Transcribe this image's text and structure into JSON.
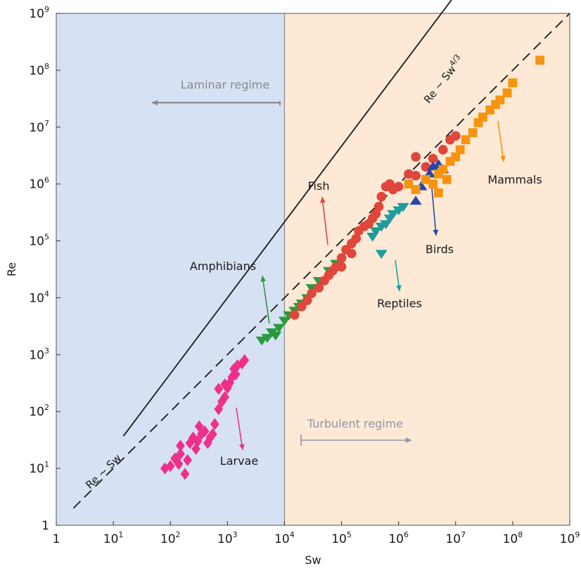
{
  "chart_data": {
    "type": "scatter",
    "scale": "log-log",
    "xlabel": "Sw",
    "ylabel": "Re",
    "xlim": [
      1,
      1000000000
    ],
    "ylim": [
      1,
      1000000000
    ],
    "x_ticks": [
      {
        "base": "1",
        "exp": ""
      },
      {
        "base": "10",
        "exp": "1"
      },
      {
        "base": "10",
        "exp": "2"
      },
      {
        "base": "10",
        "exp": "3"
      },
      {
        "base": "10",
        "exp": "4"
      },
      {
        "base": "10",
        "exp": "5"
      },
      {
        "base": "10",
        "exp": "6"
      },
      {
        "base": "10",
        "exp": "7"
      },
      {
        "base": "10",
        "exp": "8"
      },
      {
        "base": "10",
        "exp": "9"
      }
    ],
    "y_ticks": [
      {
        "base": "1",
        "exp": ""
      },
      {
        "base": "10",
        "exp": "1"
      },
      {
        "base": "10",
        "exp": "2"
      },
      {
        "base": "10",
        "exp": "3"
      },
      {
        "base": "10",
        "exp": "4"
      },
      {
        "base": "10",
        "exp": "5"
      },
      {
        "base": "10",
        "exp": "6"
      },
      {
        "base": "10",
        "exp": "7"
      },
      {
        "base": "10",
        "exp": "8"
      },
      {
        "base": "10",
        "exp": "9"
      }
    ],
    "regions": [
      {
        "label": "Laminar regime",
        "x_range": [
          1,
          10000
        ],
        "color": "#d6e1f3",
        "label_color": "#8a8a8a",
        "arrow_direction": "left"
      },
      {
        "label": "Turbulent regime",
        "x_range": [
          10000,
          1000000000
        ],
        "color": "#fde9d6",
        "label_color": "#8f96a6",
        "arrow_direction": "right"
      }
    ],
    "boundary_x": 10000,
    "laws": [
      {
        "label_main": "Re ~ Sw",
        "label_exp": "",
        "exponent": 1,
        "x_range": [
          2,
          1000000000
        ],
        "style": "dashed"
      },
      {
        "label_main": "Re ~ Sw",
        "label_exp": "4/3",
        "exponent": 1.3333,
        "x_range": [
          15,
          200000000
        ],
        "style": "solid"
      }
    ],
    "series": [
      {
        "name": "Larvae",
        "color": "#ee2f8b",
        "marker": "diamond",
        "arrow": "down",
        "points": [
          [
            80,
            10
          ],
          [
            100,
            11
          ],
          [
            120,
            15
          ],
          [
            150,
            18
          ],
          [
            140,
            12
          ],
          [
            180,
            8
          ],
          [
            200,
            14
          ],
          [
            150,
            25
          ],
          [
            220,
            28
          ],
          [
            250,
            35
          ],
          [
            300,
            30
          ],
          [
            280,
            22
          ],
          [
            350,
            40
          ],
          [
            400,
            45
          ],
          [
            320,
            55
          ],
          [
            450,
            28
          ],
          [
            500,
            35
          ],
          [
            550,
            40
          ],
          [
            600,
            60
          ],
          [
            700,
            110
          ],
          [
            800,
            150
          ],
          [
            900,
            180
          ],
          [
            1000,
            260
          ],
          [
            1100,
            320
          ],
          [
            1200,
            400
          ],
          [
            1400,
            450
          ],
          [
            1300,
            560
          ],
          [
            1500,
            650
          ],
          [
            1800,
            700
          ],
          [
            2000,
            800
          ],
          [
            900,
            300
          ],
          [
            700,
            250
          ]
        ]
      },
      {
        "name": "Amphibians",
        "color": "#2a9a3e",
        "marker": "triangle-down",
        "arrow": "up",
        "points": [
          [
            4000,
            1800
          ],
          [
            5000,
            2000
          ],
          [
            6000,
            2500
          ],
          [
            7000,
            2200
          ],
          [
            8000,
            3000
          ],
          [
            10000,
            4000
          ],
          [
            12000,
            5000
          ],
          [
            15000,
            6000
          ],
          [
            18000,
            7000
          ],
          [
            20000,
            8000
          ],
          [
            25000,
            10000
          ],
          [
            30000,
            15000
          ],
          [
            40000,
            20000
          ],
          [
            60000,
            30000
          ],
          [
            80000,
            40000
          ]
        ]
      },
      {
        "name": "Fish",
        "color": "#e0463c",
        "marker": "circle",
        "arrow": "up",
        "points": [
          [
            15000,
            5000
          ],
          [
            20000,
            7000
          ],
          [
            25000,
            9000
          ],
          [
            30000,
            12000
          ],
          [
            40000,
            15000
          ],
          [
            50000,
            20000
          ],
          [
            60000,
            25000
          ],
          [
            70000,
            30000
          ],
          [
            80000,
            35000
          ],
          [
            100000,
            50000
          ],
          [
            120000,
            70000
          ],
          [
            150000,
            90000
          ],
          [
            180000,
            110000
          ],
          [
            200000,
            150000
          ],
          [
            250000,
            180000
          ],
          [
            300000,
            200000
          ],
          [
            350000,
            250000
          ],
          [
            400000,
            300000
          ],
          [
            450000,
            400000
          ],
          [
            500000,
            600000
          ],
          [
            600000,
            900000
          ],
          [
            700000,
            1000000
          ],
          [
            800000,
            800000
          ],
          [
            1000000,
            900000
          ],
          [
            1500000,
            1500000
          ],
          [
            2000000,
            1400000
          ],
          [
            3000000,
            2000000
          ],
          [
            4000000,
            2800000
          ],
          [
            6000000,
            4000000
          ],
          [
            8000000,
            6000000
          ],
          [
            10000000,
            7000000
          ],
          [
            2000000,
            3000000
          ],
          [
            150000,
            60000
          ],
          [
            100000,
            35000
          ]
        ]
      },
      {
        "name": "Reptiles",
        "color": "#1d9c9a",
        "marker": "triangle-down",
        "arrow": "down",
        "points": [
          [
            350000,
            120000
          ],
          [
            400000,
            150000
          ],
          [
            500000,
            180000
          ],
          [
            600000,
            200000
          ],
          [
            700000,
            250000
          ],
          [
            800000,
            300000
          ],
          [
            1000000,
            350000
          ],
          [
            1200000,
            400000
          ],
          [
            500000,
            60000
          ]
        ]
      },
      {
        "name": "Birds",
        "color": "#2846a8",
        "marker": "triangle-up",
        "arrow": "down",
        "points": [
          [
            2000000,
            500000
          ],
          [
            2500000,
            900000
          ],
          [
            3000000,
            1200000
          ],
          [
            3500000,
            1500000
          ],
          [
            4000000,
            2000000
          ],
          [
            5000000,
            2200000
          ],
          [
            6000000,
            1800000
          ]
        ]
      },
      {
        "name": "Mammals",
        "color": "#f7940f",
        "marker": "square",
        "arrow": "down",
        "points": [
          [
            1500000,
            1000000
          ],
          [
            2000000,
            800000
          ],
          [
            3000000,
            1200000
          ],
          [
            4000000,
            1000000
          ],
          [
            5000000,
            1500000
          ],
          [
            6000000,
            1800000
          ],
          [
            8000000,
            2500000
          ],
          [
            10000000,
            3000000
          ],
          [
            12000000,
            4000000
          ],
          [
            15000000,
            6000000
          ],
          [
            20000000,
            8000000
          ],
          [
            25000000,
            12000000
          ],
          [
            30000000,
            15000000
          ],
          [
            40000000,
            20000000
          ],
          [
            50000000,
            25000000
          ],
          [
            60000000,
            30000000
          ],
          [
            80000000,
            40000000
          ],
          [
            100000000,
            60000000
          ],
          [
            300000000,
            150000000
          ],
          [
            5000000,
            700000
          ],
          [
            7000000,
            1200000
          ]
        ]
      }
    ]
  }
}
